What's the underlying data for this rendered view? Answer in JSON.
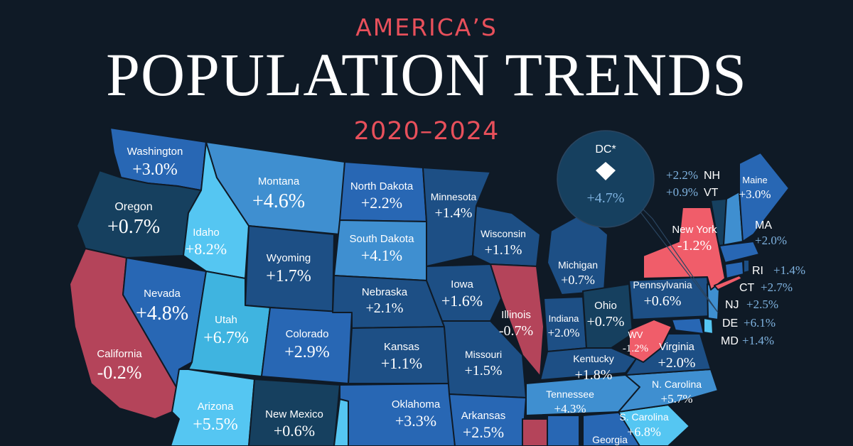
{
  "header": {
    "kicker": "AMERICA’S",
    "title": "POPULATION TRENDS",
    "years": "2020–2024"
  },
  "colors": {
    "background": "#0f1a26",
    "dark_navy": "#16405f",
    "navy": "#1d4f85",
    "medium_blue": "#2867b4",
    "blue": "#3f8fd0",
    "light_blue": "#55c6f2",
    "decline_red": "#f05d6a",
    "decline_dark_red": "#b4445a",
    "callout_value": "#7fb3e0"
  },
  "states": [
    {
      "id": "washington",
      "name": "Washington",
      "value": "+3.0%"
    },
    {
      "id": "oregon",
      "name": "Oregon",
      "value": "+0.7%"
    },
    {
      "id": "california",
      "name": "California",
      "value": "-0.2%"
    },
    {
      "id": "idaho",
      "name": "Idaho",
      "value": "+8.2%"
    },
    {
      "id": "nevada",
      "name": "Nevada",
      "value": "+4.8%"
    },
    {
      "id": "montana",
      "name": "Montana",
      "value": "+4.6%"
    },
    {
      "id": "wyoming",
      "name": "Wyoming",
      "value": "+1.7%"
    },
    {
      "id": "utah",
      "name": "Utah",
      "value": "+6.7%"
    },
    {
      "id": "arizona",
      "name": "Arizona",
      "value": "+5.5%"
    },
    {
      "id": "colorado",
      "name": "Colorado",
      "value": "+2.9%"
    },
    {
      "id": "new_mexico",
      "name": "New Mexico",
      "value": "+0.6%"
    },
    {
      "id": "north_dakota",
      "name": "North Dakota",
      "value": "+2.2%"
    },
    {
      "id": "south_dakota",
      "name": "South Dakota",
      "value": "+4.1%"
    },
    {
      "id": "nebraska",
      "name": "Nebraska",
      "value": "+2.1%"
    },
    {
      "id": "kansas",
      "name": "Kansas",
      "value": "+1.1%"
    },
    {
      "id": "oklahoma",
      "name": "Oklahoma",
      "value": "+3.3%"
    },
    {
      "id": "minnesota",
      "name": "Minnesota",
      "value": "+1.4%"
    },
    {
      "id": "iowa",
      "name": "Iowa",
      "value": "+1.6%"
    },
    {
      "id": "missouri",
      "name": "Missouri",
      "value": "+1.5%"
    },
    {
      "id": "arkansas",
      "name": "Arkansas",
      "value": "+2.5%"
    },
    {
      "id": "wisconsin",
      "name": "Wisconsin",
      "value": "+1.1%"
    },
    {
      "id": "illinois",
      "name": "Illinois",
      "value": "-0.7%"
    },
    {
      "id": "michigan",
      "name": "Michigan",
      "value": "+0.7%"
    },
    {
      "id": "indiana",
      "name": "Indiana",
      "value": "+2.0%"
    },
    {
      "id": "ohio",
      "name": "Ohio",
      "value": "+0.7%"
    },
    {
      "id": "kentucky",
      "name": "Kentucky",
      "value": "+1.8%"
    },
    {
      "id": "tennessee",
      "name": "Tennessee",
      "value": "+4.3%"
    },
    {
      "id": "pennsylvania",
      "name": "Pennsylvania",
      "value": "+0.6%"
    },
    {
      "id": "west_virginia",
      "name": "WV",
      "value": "-1.2%"
    },
    {
      "id": "virginia",
      "name": "Virginia",
      "value": "+2.0%"
    },
    {
      "id": "north_carolina",
      "name": "N. Carolina",
      "value": "+5.7%"
    },
    {
      "id": "south_carolina",
      "name": "S. Carolina",
      "value": "+6.8%"
    },
    {
      "id": "georgia",
      "name": "Georgia",
      "value": ""
    },
    {
      "id": "new_york",
      "name": "New York",
      "value": "-1.2%"
    },
    {
      "id": "maine",
      "name": "Maine",
      "value": "+3.0%"
    }
  ],
  "side_labels": [
    {
      "id": "nh",
      "name": "NH",
      "value": "+2.2%"
    },
    {
      "id": "vt",
      "name": "VT",
      "value": "+0.9%"
    },
    {
      "id": "ma",
      "name": "MA",
      "value": "+2.0%"
    },
    {
      "id": "ri",
      "name": "RI",
      "value": "+1.4%"
    },
    {
      "id": "ct",
      "name": "CT",
      "value": "+2.7%"
    },
    {
      "id": "nj",
      "name": "NJ",
      "value": "+2.5%"
    },
    {
      "id": "de",
      "name": "DE",
      "value": "+6.1%"
    },
    {
      "id": "md",
      "name": "MD",
      "value": "+1.4%"
    }
  ],
  "dc_callout": {
    "name": "DC*",
    "value": "+4.7%"
  }
}
